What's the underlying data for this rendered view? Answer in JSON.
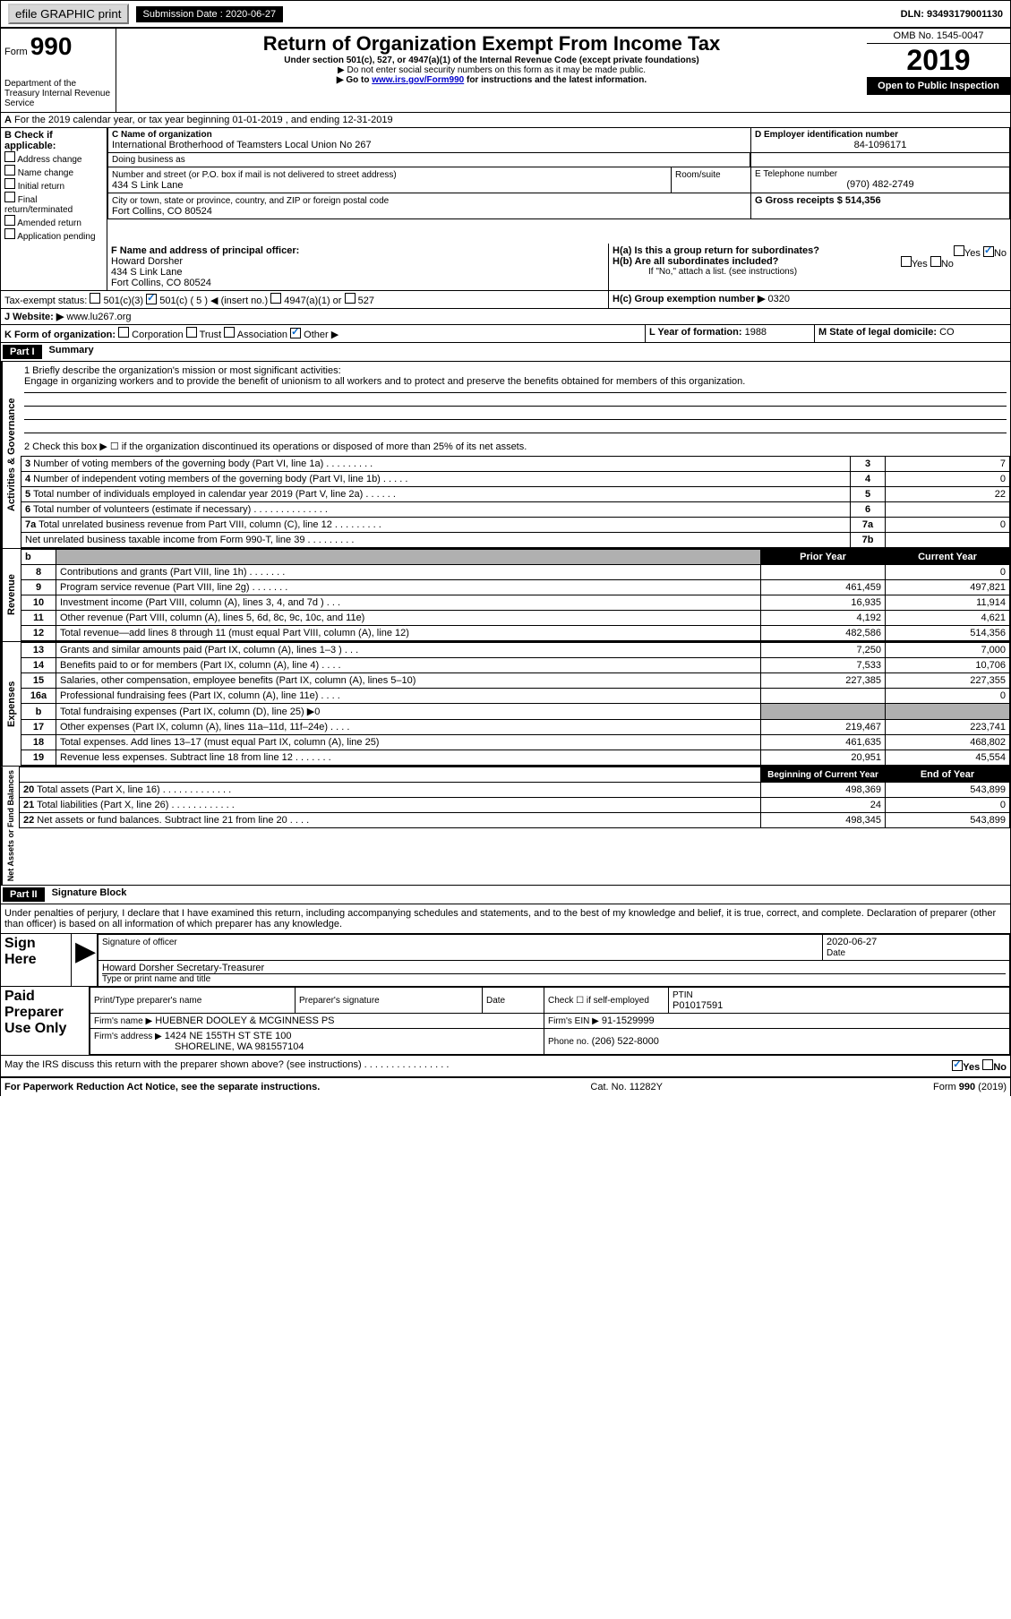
{
  "top": {
    "efile": "efile GRAPHIC print",
    "submission_label": "Submission Date : 2020-06-27",
    "dln": "DLN: 93493179001130"
  },
  "header": {
    "form_prefix": "Form",
    "form_number": "990",
    "title": "Return of Organization Exempt From Income Tax",
    "subtitle": "Under section 501(c), 527, or 4947(a)(1) of the Internal Revenue Code (except private foundations)",
    "note1": "▶ Do not enter social security numbers on this form as it may be made public.",
    "note2_pre": "▶ Go to ",
    "note2_link": "www.irs.gov/Form990",
    "note2_post": " for instructions and the latest information.",
    "dept": "Department of the Treasury\nInternal Revenue Service",
    "omb": "OMB No. 1545-0047",
    "year": "2019",
    "open": "Open to Public Inspection"
  },
  "sectionA": {
    "line": "For the 2019 calendar year, or tax year beginning 01-01-2019    , and ending 12-31-2019"
  },
  "sectionB": {
    "label": "B Check if applicable:",
    "opts": [
      "Address change",
      "Name change",
      "Initial return",
      "Final return/terminated",
      "Amended return",
      "Application pending"
    ]
  },
  "sectionC": {
    "name_label": "C Name of organization",
    "name": "International Brotherhood of Teamsters\nLocal Union No 267",
    "dba_label": "Doing business as",
    "addr_label": "Number and street (or P.O. box if mail is not delivered to street address)",
    "addr": "434 S Link Lane",
    "room_label": "Room/suite",
    "city_label": "City or town, state or province, country, and ZIP or foreign postal code",
    "city": "Fort Collins, CO  80524"
  },
  "sectionD": {
    "label": "D Employer identification number",
    "ein": "84-1096171"
  },
  "sectionE": {
    "label": "E Telephone number",
    "phone": "(970) 482-2749"
  },
  "sectionG": {
    "label": "G Gross receipts $ 514,356"
  },
  "sectionF": {
    "label": "F Name and address of principal officer:",
    "name": "Howard Dorsher",
    "addr1": "434 S Link Lane",
    "addr2": "Fort Collins, CO  80524"
  },
  "sectionH": {
    "a": "H(a)  Is this a group return for subordinates?",
    "b": "H(b)  Are all subordinates included?",
    "note": "If \"No,\" attach a list. (see instructions)",
    "c": "H(c)  Group exemption number ▶",
    "c_val": "0320",
    "yes": "Yes",
    "no": "No"
  },
  "sectionI": {
    "label": "Tax-exempt status:",
    "o1": "501(c)(3)",
    "o2": "501(c) ( 5 ) ◀ (insert no.)",
    "o3": "4947(a)(1) or",
    "o4": "527"
  },
  "sectionJ": {
    "label": "J   Website: ▶",
    "url": "www.lu267.org"
  },
  "sectionK": {
    "label": "K Form of organization:",
    "o1": "Corporation",
    "o2": "Trust",
    "o3": "Association",
    "o4": "Other ▶"
  },
  "sectionL": {
    "label": "L Year of formation:",
    "val": "1988"
  },
  "sectionM": {
    "label": "M State of legal domicile:",
    "val": "CO"
  },
  "part1": {
    "header": "Part I",
    "title": "Summary",
    "line1_label": "1  Briefly describe the organization's mission or most significant activities:",
    "line1_text": "Engage in organizing workers and to provide the benefit of unionism to all workers and to protect and preserve the benefits obtained for members of this organization.",
    "line2": "2   Check this box ▶ ☐  if the organization discontinued its operations or disposed of more than 25% of its net assets.",
    "rows_ag": [
      {
        "n": "3",
        "t": "Number of voting members of the governing body (Part VI, line 1a)   .   .   .   .   .   .   .   .   .",
        "box": "3",
        "v": "7"
      },
      {
        "n": "4",
        "t": "Number of independent voting members of the governing body (Part VI, line 1b)  .   .   .   .   .",
        "box": "4",
        "v": "0"
      },
      {
        "n": "5",
        "t": "Total number of individuals employed in calendar year 2019 (Part V, line 2a)  .   .   .   .   .   .",
        "box": "5",
        "v": "22"
      },
      {
        "n": "6",
        "t": "Total number of volunteers (estimate if necessary)   .   .   .   .   .   .   .   .   .   .   .   .   .   .",
        "box": "6",
        "v": ""
      },
      {
        "n": "7a",
        "t": "Total unrelated business revenue from Part VIII, column (C), line 12  .   .   .   .   .   .   .   .   .",
        "box": "7a",
        "v": "0"
      },
      {
        "n": "",
        "t": "Net unrelated business taxable income from Form 990-T, line 39   .   .   .   .   .   .   .   .   .",
        "box": "7b",
        "v": ""
      }
    ],
    "prior": "Prior Year",
    "current": "Current Year",
    "revenue": [
      {
        "n": "8",
        "t": "Contributions and grants (Part VIII, line 1h)   .   .   .   .   .   .   .",
        "p": "",
        "c": "0"
      },
      {
        "n": "9",
        "t": "Program service revenue (Part VIII, line 2g)   .   .   .   .   .   .   .",
        "p": "461,459",
        "c": "497,821"
      },
      {
        "n": "10",
        "t": "Investment income (Part VIII, column (A), lines 3, 4, and 7d )   .   .   .",
        "p": "16,935",
        "c": "11,914"
      },
      {
        "n": "11",
        "t": "Other revenue (Part VIII, column (A), lines 5, 6d, 8c, 9c, 10c, and 11e)",
        "p": "4,192",
        "c": "4,621"
      },
      {
        "n": "12",
        "t": "Total revenue—add lines 8 through 11 (must equal Part VIII, column (A), line 12)",
        "p": "482,586",
        "c": "514,356"
      }
    ],
    "expenses": [
      {
        "n": "13",
        "t": "Grants and similar amounts paid (Part IX, column (A), lines 1–3 )   .   .   .",
        "p": "7,250",
        "c": "7,000"
      },
      {
        "n": "14",
        "t": "Benefits paid to or for members (Part IX, column (A), line 4)   .   .   .   .",
        "p": "7,533",
        "c": "10,706"
      },
      {
        "n": "15",
        "t": "Salaries, other compensation, employee benefits (Part IX, column (A), lines 5–10)",
        "p": "227,385",
        "c": "227,355"
      },
      {
        "n": "16a",
        "t": "Professional fundraising fees (Part IX, column (A), line 11e)   .   .   .   .",
        "p": "",
        "c": "0"
      },
      {
        "n": "b",
        "t": "Total fundraising expenses (Part IX, column (D), line 25) ▶0",
        "p": "GREY",
        "c": "GREY"
      },
      {
        "n": "17",
        "t": "Other expenses (Part IX, column (A), lines 11a–11d, 11f–24e)   .   .   .   .",
        "p": "219,467",
        "c": "223,741"
      },
      {
        "n": "18",
        "t": "Total expenses. Add lines 13–17 (must equal Part IX, column (A), line 25)",
        "p": "461,635",
        "c": "468,802"
      },
      {
        "n": "19",
        "t": "Revenue less expenses. Subtract line 18 from line 12  .   .   .   .   .   .   .",
        "p": "20,951",
        "c": "45,554"
      }
    ],
    "begin": "Beginning of Current Year",
    "end": "End of Year",
    "netassets": [
      {
        "n": "20",
        "t": "Total assets (Part X, line 16)  .   .   .   .   .   .   .   .   .   .   .   .   .",
        "p": "498,369",
        "c": "543,899"
      },
      {
        "n": "21",
        "t": "Total liabilities (Part X, line 26)   .   .   .   .   .   .   .   .   .   .   .   .",
        "p": "24",
        "c": "0"
      },
      {
        "n": "22",
        "t": "Net assets or fund balances. Subtract line 21 from line 20   .   .   .   .",
        "p": "498,345",
        "c": "543,899"
      }
    ],
    "vert_ag": "Activities & Governance",
    "vert_rev": "Revenue",
    "vert_exp": "Expenses",
    "vert_net": "Net Assets or Fund Balances"
  },
  "part2": {
    "header": "Part II",
    "title": "Signature Block",
    "penalty": "Under penalties of perjury, I declare that I have examined this return, including accompanying schedules and statements, and to the best of my knowledge and belief, it is true, correct, and complete. Declaration of preparer (other than officer) is based on all information of which preparer has any knowledge.",
    "sign_here": "Sign Here",
    "sig_officer": "Signature of officer",
    "date": "Date",
    "date_val": "2020-06-27",
    "officer_name": "Howard Dorsher  Secretary-Treasurer",
    "type_name": "Type or print name and title",
    "paid": "Paid Preparer Use Only",
    "print_name": "Print/Type preparer's name",
    "prep_sig": "Preparer's signature",
    "check_self": "Check ☐ if self-employed",
    "ptin_label": "PTIN",
    "ptin": "P01017591",
    "firm_name_label": "Firm's name   ▶",
    "firm_name": "HUEBNER DOOLEY & MCGINNESS PS",
    "firm_ein_label": "Firm's EIN ▶",
    "firm_ein": "91-1529999",
    "firm_addr_label": "Firm's address ▶",
    "firm_addr1": "1424 NE 155TH ST STE 100",
    "firm_addr2": "SHORELINE, WA  981557104",
    "phone_label": "Phone no.",
    "phone": "(206) 522-8000",
    "discuss": "May the IRS discuss this return with the preparer shown above? (see instructions)   .   .   .   .   .   .   .   .   .   .   .   .   .   .   .   ."
  },
  "footer": {
    "paperwork": "For Paperwork Reduction Act Notice, see the separate instructions.",
    "cat": "Cat. No. 11282Y",
    "form": "Form 990 (2019)"
  },
  "colors": {
    "black": "#000000",
    "grey": "#b0b0b0",
    "link": "#0000cc"
  }
}
